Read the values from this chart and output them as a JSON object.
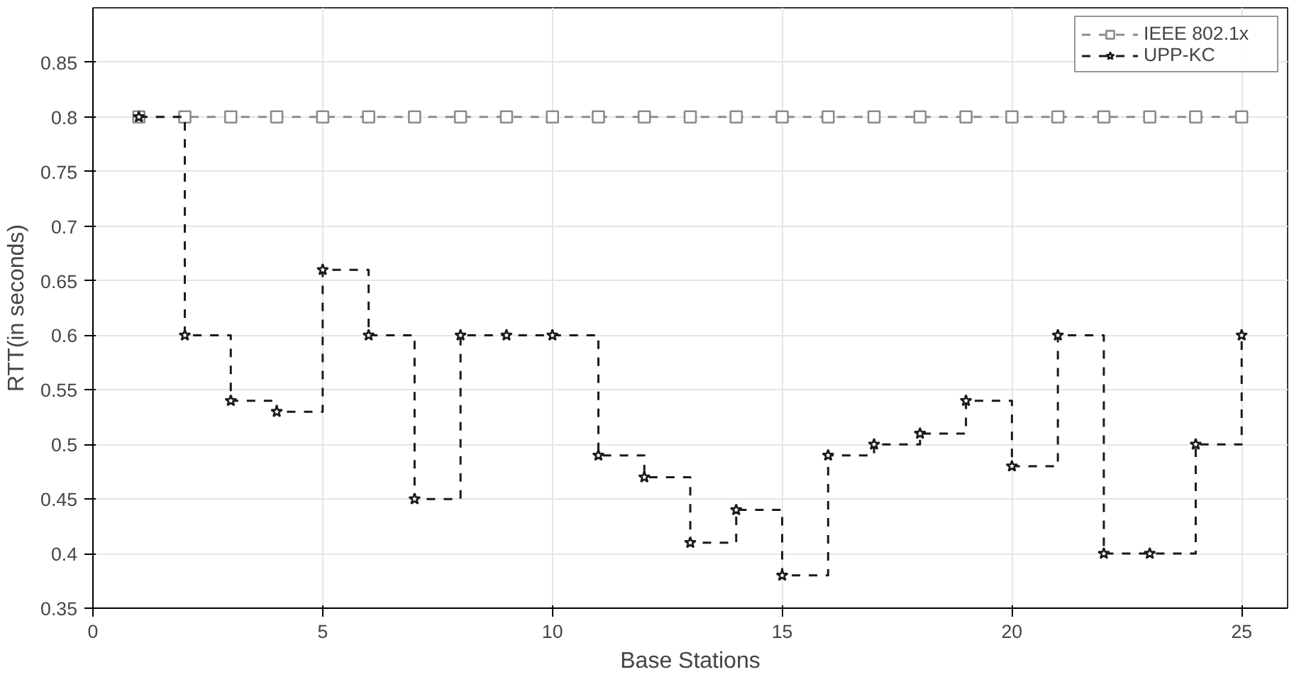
{
  "chart_data": {
    "type": "line",
    "xlabel": "Base Stations",
    "ylabel": "RTT(in seconds)",
    "x": [
      1,
      2,
      3,
      4,
      5,
      6,
      7,
      8,
      9,
      10,
      11,
      12,
      13,
      14,
      15,
      16,
      17,
      18,
      19,
      20,
      21,
      22,
      23,
      24,
      25
    ],
    "series": [
      {
        "name": "IEEE 802.1x",
        "marker": "square",
        "color": "#8c8c8c",
        "values": [
          0.8,
          0.8,
          0.8,
          0.8,
          0.8,
          0.8,
          0.8,
          0.8,
          0.8,
          0.8,
          0.8,
          0.8,
          0.8,
          0.8,
          0.8,
          0.8,
          0.8,
          0.8,
          0.8,
          0.8,
          0.8,
          0.8,
          0.8,
          0.8,
          0.8
        ]
      },
      {
        "name": "UPP-KC",
        "type": "step",
        "marker": "star",
        "color": "#1a1a1a",
        "values": [
          0.8,
          0.6,
          0.54,
          0.53,
          0.66,
          0.6,
          0.45,
          0.6,
          0.6,
          0.6,
          0.49,
          0.47,
          0.41,
          0.44,
          0.38,
          0.49,
          0.5,
          0.51,
          0.54,
          0.48,
          0.6,
          0.4,
          0.4,
          0.5,
          0.6
        ]
      }
    ],
    "line_style": "dashed",
    "xlim": [
      0,
      26
    ],
    "xticks": [
      0,
      5,
      10,
      15,
      20,
      25
    ],
    "ylim": [
      0.35,
      0.9
    ],
    "yticks": [
      0.35,
      0.4,
      0.45,
      0.5,
      0.55,
      0.6,
      0.65,
      0.7,
      0.75,
      0.8,
      0.85
    ],
    "grid": true,
    "legend": "top right"
  }
}
